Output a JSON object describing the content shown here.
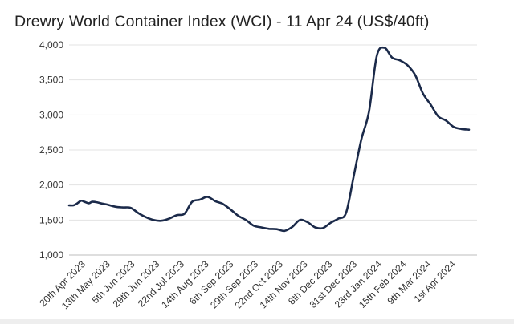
{
  "chart_data": {
    "type": "line",
    "title": "Drewry World Container Index (WCI) - 11 Apr 24 (US$/40ft)",
    "xlabel": "",
    "ylabel": "",
    "ylim": [
      1000,
      4000
    ],
    "yticks": [
      1000,
      1500,
      2000,
      2500,
      3000,
      3500,
      4000
    ],
    "ytick_labels": [
      "1,000",
      "1,500",
      "2,000",
      "2,500",
      "3,000",
      "3,500",
      "4,000"
    ],
    "xtick_labels": [
      "20th Apr 2023",
      "13th May 2023",
      "5th Jun 2023",
      "29th Jun 2023",
      "22nd Jul 2023",
      "14th Aug 2023",
      "6th Sep 2023",
      "29th Sep 2023",
      "22nd Oct 2023",
      "14th Nov 2023",
      "8th Dec 2023",
      "31st Dec 2023",
      "23rd Jan 2024",
      "15th Feb 2024",
      "9th Mar 2024",
      "1st Apr 2024"
    ],
    "grid": true,
    "line_color": "#1b2a4a",
    "series": [
      {
        "values": [
          {
            "x": "2023-04-13",
            "y": 1710
          },
          {
            "x": "2023-04-17",
            "y": 1710
          },
          {
            "x": "2023-04-20",
            "y": 1733
          },
          {
            "x": "2023-04-24",
            "y": 1775
          },
          {
            "x": "2023-04-27",
            "y": 1760
          },
          {
            "x": "2023-05-01",
            "y": 1740
          },
          {
            "x": "2023-05-04",
            "y": 1760
          },
          {
            "x": "2023-05-08",
            "y": 1755
          },
          {
            "x": "2023-05-13",
            "y": 1735
          },
          {
            "x": "2023-05-18",
            "y": 1720
          },
          {
            "x": "2023-05-25",
            "y": 1690
          },
          {
            "x": "2023-06-01",
            "y": 1680
          },
          {
            "x": "2023-06-08",
            "y": 1675
          },
          {
            "x": "2023-06-15",
            "y": 1600
          },
          {
            "x": "2023-06-22",
            "y": 1540
          },
          {
            "x": "2023-06-29",
            "y": 1500
          },
          {
            "x": "2023-07-06",
            "y": 1490
          },
          {
            "x": "2023-07-13",
            "y": 1520
          },
          {
            "x": "2023-07-20",
            "y": 1570
          },
          {
            "x": "2023-07-27",
            "y": 1590
          },
          {
            "x": "2023-08-03",
            "y": 1760
          },
          {
            "x": "2023-08-10",
            "y": 1790
          },
          {
            "x": "2023-08-17",
            "y": 1830
          },
          {
            "x": "2023-08-24",
            "y": 1770
          },
          {
            "x": "2023-08-31",
            "y": 1730
          },
          {
            "x": "2023-09-07",
            "y": 1650
          },
          {
            "x": "2023-09-14",
            "y": 1560
          },
          {
            "x": "2023-09-21",
            "y": 1500
          },
          {
            "x": "2023-09-28",
            "y": 1420
          },
          {
            "x": "2023-10-05",
            "y": 1395
          },
          {
            "x": "2023-10-12",
            "y": 1375
          },
          {
            "x": "2023-10-19",
            "y": 1370
          },
          {
            "x": "2023-10-26",
            "y": 1345
          },
          {
            "x": "2023-11-02",
            "y": 1400
          },
          {
            "x": "2023-11-09",
            "y": 1500
          },
          {
            "x": "2023-11-16",
            "y": 1470
          },
          {
            "x": "2023-11-23",
            "y": 1395
          },
          {
            "x": "2023-11-30",
            "y": 1385
          },
          {
            "x": "2023-12-07",
            "y": 1460
          },
          {
            "x": "2023-12-14",
            "y": 1520
          },
          {
            "x": "2023-12-21",
            "y": 1600
          },
          {
            "x": "2023-12-28",
            "y": 2120
          },
          {
            "x": "2024-01-04",
            "y": 2650
          },
          {
            "x": "2024-01-11",
            "y": 3050
          },
          {
            "x": "2024-01-18",
            "y": 3840
          },
          {
            "x": "2024-01-25",
            "y": 3960
          },
          {
            "x": "2024-02-01",
            "y": 3820
          },
          {
            "x": "2024-02-08",
            "y": 3780
          },
          {
            "x": "2024-02-15",
            "y": 3710
          },
          {
            "x": "2024-02-22",
            "y": 3570
          },
          {
            "x": "2024-02-29",
            "y": 3310
          },
          {
            "x": "2024-03-07",
            "y": 3150
          },
          {
            "x": "2024-03-14",
            "y": 2980
          },
          {
            "x": "2024-03-21",
            "y": 2920
          },
          {
            "x": "2024-03-28",
            "y": 2830
          },
          {
            "x": "2024-04-04",
            "y": 2800
          },
          {
            "x": "2024-04-11",
            "y": 2790
          }
        ]
      }
    ]
  }
}
